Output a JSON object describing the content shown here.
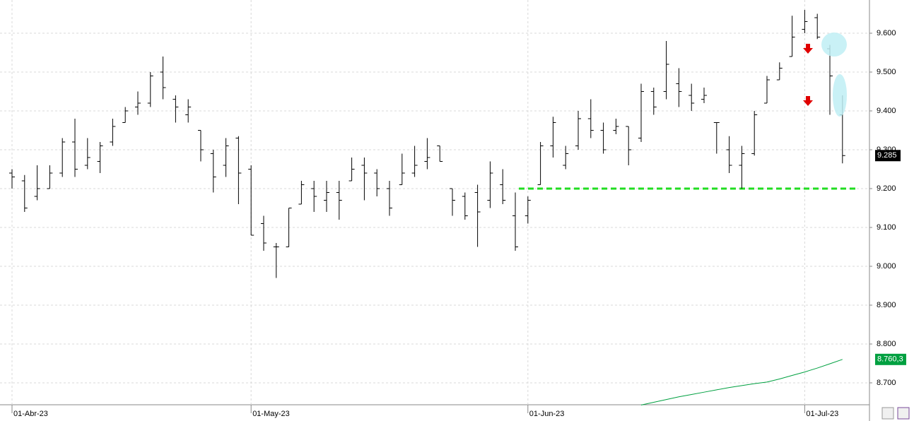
{
  "chart_data": {
    "type": "ohlc",
    "categories": [
      "01-Abr-23",
      null,
      null,
      null,
      null,
      null,
      null,
      null,
      null,
      null,
      null,
      null,
      null,
      null,
      null,
      null,
      null,
      null,
      null,
      "01-May-23",
      null,
      null,
      null,
      null,
      null,
      null,
      null,
      null,
      null,
      null,
      null,
      null,
      null,
      null,
      null,
      null,
      null,
      null,
      null,
      null,
      null,
      "01-Jun-23",
      null,
      null,
      null,
      null,
      null,
      null,
      null,
      null,
      null,
      null,
      null,
      null,
      null,
      null,
      null,
      null,
      null,
      null,
      null,
      null,
      null,
      "01-Jul-23",
      null,
      null,
      null
    ],
    "open": [
      9.24,
      9.22,
      9.18,
      9.2,
      9.24,
      9.32,
      9.26,
      9.27,
      9.32,
      9.37,
      9.41,
      9.42,
      9.5,
      9.43,
      9.39,
      9.35,
      9.29,
      9.26,
      9.33,
      9.25,
      9.11,
      9.05,
      9.05,
      9.16,
      9.2,
      9.17,
      9.19,
      9.22,
      9.26,
      9.24,
      9.2,
      9.21,
      9.24,
      9.27,
      9.31,
      9.2,
      9.18,
      9.19,
      9.17,
      9.21,
      9.13,
      9.13,
      9.21,
      9.31,
      9.26,
      9.31,
      9.38,
      9.35,
      9.35,
      9.36,
      9.33,
      9.45,
      9.45,
      9.47,
      9.44,
      9.43,
      9.37,
      9.3,
      9.26,
      9.29,
      9.42,
      9.48,
      9.54,
      9.61,
      9.64,
      9.56,
      9.39
    ],
    "high": [
      9.25,
      9.235,
      9.26,
      9.26,
      9.33,
      9.38,
      9.33,
      9.32,
      9.38,
      9.41,
      9.45,
      9.5,
      9.54,
      9.44,
      9.43,
      9.35,
      9.3,
      9.33,
      9.335,
      9.26,
      9.13,
      9.06,
      9.15,
      9.22,
      9.22,
      9.22,
      9.22,
      9.28,
      9.28,
      9.25,
      9.22,
      9.29,
      9.31,
      9.33,
      9.31,
      9.2,
      9.19,
      9.21,
      9.27,
      9.25,
      9.19,
      9.18,
      9.32,
      9.385,
      9.31,
      9.4,
      9.43,
      9.37,
      9.38,
      9.36,
      9.47,
      9.46,
      9.58,
      9.51,
      9.47,
      9.46,
      9.37,
      9.335,
      9.31,
      9.4,
      9.49,
      9.525,
      9.645,
      9.66,
      9.65,
      9.57,
      9.44
    ],
    "low": [
      9.2,
      9.14,
      9.17,
      9.2,
      9.23,
      9.23,
      9.25,
      9.24,
      9.31,
      9.37,
      9.39,
      9.41,
      9.43,
      9.37,
      9.37,
      9.27,
      9.19,
      9.23,
      9.16,
      9.08,
      9.04,
      8.97,
      9.05,
      9.16,
      9.14,
      9.14,
      9.12,
      9.22,
      9.17,
      9.18,
      9.13,
      9.21,
      9.23,
      9.25,
      9.27,
      9.13,
      9.12,
      9.05,
      9.15,
      9.16,
      9.04,
      9.11,
      9.21,
      9.28,
      9.25,
      9.3,
      9.33,
      9.29,
      9.34,
      9.26,
      9.32,
      9.39,
      9.43,
      9.41,
      9.4,
      9.42,
      9.29,
      9.24,
      9.2,
      9.285,
      9.42,
      9.48,
      9.54,
      9.6,
      9.585,
      9.39,
      9.265
    ],
    "close": [
      9.23,
      9.15,
      9.2,
      9.24,
      9.32,
      9.25,
      9.28,
      9.31,
      9.36,
      9.4,
      9.42,
      9.49,
      9.46,
      9.41,
      9.41,
      9.3,
      9.23,
      9.31,
      9.24,
      9.08,
      9.06,
      9.05,
      9.15,
      9.21,
      9.18,
      9.19,
      9.17,
      9.25,
      9.24,
      9.2,
      9.15,
      9.24,
      9.26,
      9.28,
      9.27,
      9.17,
      9.13,
      9.14,
      9.24,
      9.17,
      9.05,
      9.17,
      9.31,
      9.37,
      9.29,
      9.38,
      9.35,
      9.3,
      9.36,
      9.3,
      9.45,
      9.41,
      9.52,
      9.45,
      9.42,
      9.44,
      9.37,
      9.26,
      9.29,
      9.39,
      9.48,
      9.51,
      9.59,
      9.63,
      9.59,
      9.49,
      9.285
    ],
    "color": "#000000",
    "moving_average": {
      "color": "#00a040",
      "values": [
        null,
        null,
        null,
        null,
        null,
        null,
        null,
        null,
        null,
        null,
        null,
        null,
        null,
        null,
        null,
        null,
        null,
        null,
        null,
        null,
        null,
        null,
        null,
        null,
        null,
        null,
        null,
        null,
        null,
        null,
        null,
        null,
        null,
        null,
        null,
        null,
        null,
        null,
        null,
        null,
        null,
        null,
        null,
        null,
        null,
        null,
        null,
        null,
        null,
        null,
        8.643,
        8.65,
        8.657,
        8.664,
        8.67,
        8.676,
        8.682,
        8.688,
        8.693,
        8.698,
        8.702,
        8.71,
        8.719,
        8.728,
        8.738,
        8.749,
        8.7603
      ],
      "value_labels": [
        null,
        null,
        null,
        null,
        null,
        null,
        null,
        null,
        null,
        null,
        null,
        null,
        null,
        null,
        null,
        null,
        null,
        null,
        null,
        null,
        null,
        null,
        null,
        null,
        null,
        null,
        null,
        null,
        null,
        null,
        null,
        null,
        null,
        null,
        null,
        null,
        null,
        null,
        null,
        null,
        null,
        null,
        null,
        null,
        null,
        null,
        null,
        null,
        null,
        null,
        null,
        null,
        null,
        null,
        null,
        null,
        null,
        null,
        null,
        null,
        null,
        null,
        null,
        null,
        null,
        null,
        "8.760,3"
      ]
    },
    "support_line": {
      "value": 9.2,
      "color": "#22dd22"
    },
    "ylim": [
      8.6436,
      9.6855
    ],
    "yticks": [
      {
        "value": 8.7,
        "label": "8.700"
      },
      {
        "value": 8.8,
        "label": "8.800"
      },
      {
        "value": 8.9,
        "label": "8.900"
      },
      {
        "value": 9.0,
        "label": "9.000"
      },
      {
        "value": 9.1,
        "label": "9.100"
      },
      {
        "value": 9.2,
        "label": "9.200"
      },
      {
        "value": 9.3,
        "label": "9.300"
      },
      {
        "value": 9.4,
        "label": "9.400"
      },
      {
        "value": 9.5,
        "label": "9.500"
      },
      {
        "value": 9.6,
        "label": "9.600"
      }
    ],
    "grid": true
  }
}
